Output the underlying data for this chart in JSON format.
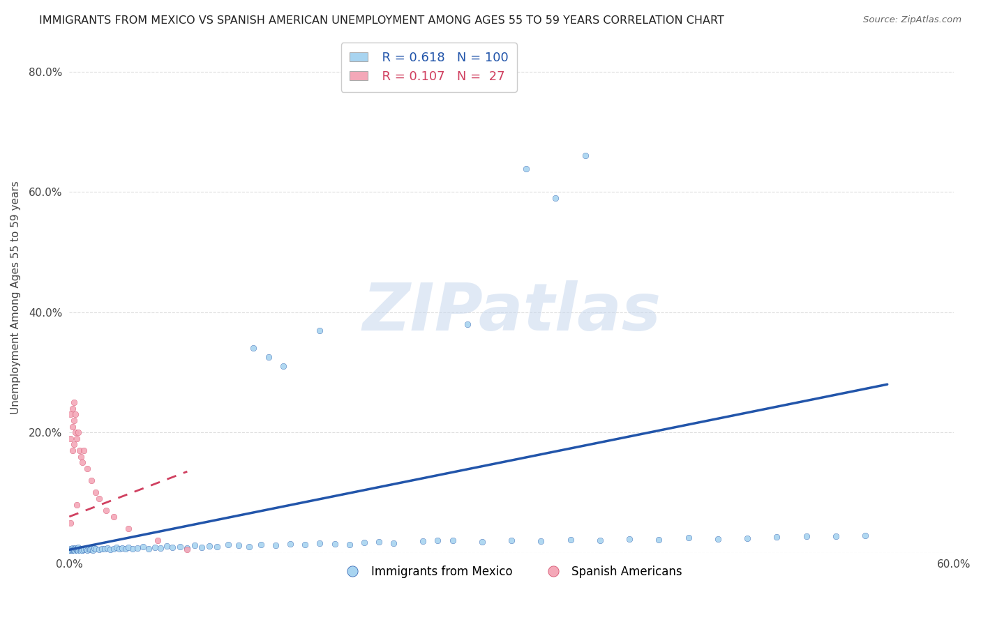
{
  "title": "IMMIGRANTS FROM MEXICO VS SPANISH AMERICAN UNEMPLOYMENT AMONG AGES 55 TO 59 YEARS CORRELATION CHART",
  "source": "Source: ZipAtlas.com",
  "ylabel": "Unemployment Among Ages 55 to 59 years",
  "xlim": [
    0.0,
    0.6
  ],
  "ylim": [
    0.0,
    0.85
  ],
  "xtick_vals": [
    0.0,
    0.1,
    0.2,
    0.3,
    0.4,
    0.5,
    0.6
  ],
  "xticklabels": [
    "0.0%",
    "",
    "",
    "",
    "",
    "",
    "60.0%"
  ],
  "ytick_vals": [
    0.0,
    0.2,
    0.4,
    0.6,
    0.8
  ],
  "yticklabels": [
    "",
    "20.0%",
    "40.0%",
    "60.0%",
    "80.0%"
  ],
  "blue_color": "#a8d4f0",
  "blue_line_color": "#2255aa",
  "pink_color": "#f4a8b8",
  "pink_line_color": "#d04060",
  "legend_R1": "R = 0.618",
  "legend_N1": "N = 100",
  "legend_R2": "R = 0.107",
  "legend_N2": "N =  27",
  "legend_label1": "Immigrants from Mexico",
  "legend_label2": "Spanish Americans",
  "watermark": "ZIPatlas",
  "background_color": "#ffffff",
  "grid_color": "#dddddd",
  "blue_scatter_x": [
    0.001,
    0.001,
    0.001,
    0.001,
    0.001,
    0.002,
    0.002,
    0.002,
    0.002,
    0.003,
    0.003,
    0.003,
    0.003,
    0.004,
    0.004,
    0.004,
    0.005,
    0.005,
    0.005,
    0.006,
    0.006,
    0.006,
    0.007,
    0.007,
    0.008,
    0.008,
    0.009,
    0.009,
    0.01,
    0.011,
    0.012,
    0.013,
    0.014,
    0.015,
    0.016,
    0.017,
    0.018,
    0.02,
    0.022,
    0.024,
    0.026,
    0.028,
    0.03,
    0.032,
    0.034,
    0.036,
    0.038,
    0.04,
    0.043,
    0.046,
    0.05,
    0.054,
    0.058,
    0.062,
    0.066,
    0.07,
    0.075,
    0.08,
    0.085,
    0.09,
    0.095,
    0.1,
    0.108,
    0.115,
    0.122,
    0.13,
    0.14,
    0.15,
    0.16,
    0.17,
    0.18,
    0.19,
    0.2,
    0.21,
    0.22,
    0.24,
    0.26,
    0.28,
    0.3,
    0.32,
    0.34,
    0.36,
    0.38,
    0.4,
    0.42,
    0.44,
    0.46,
    0.48,
    0.5,
    0.52,
    0.54,
    0.31,
    0.33,
    0.35,
    0.17,
    0.145,
    0.135,
    0.125,
    0.27,
    0.25
  ],
  "blue_scatter_y": [
    0.002,
    0.005,
    0.003,
    0.007,
    0.004,
    0.003,
    0.006,
    0.004,
    0.008,
    0.005,
    0.003,
    0.007,
    0.004,
    0.006,
    0.003,
    0.008,
    0.004,
    0.007,
    0.005,
    0.006,
    0.003,
    0.009,
    0.005,
    0.004,
    0.007,
    0.003,
    0.006,
    0.004,
    0.005,
    0.007,
    0.004,
    0.006,
    0.005,
    0.007,
    0.004,
    0.008,
    0.006,
    0.005,
    0.007,
    0.006,
    0.008,
    0.005,
    0.007,
    0.009,
    0.006,
    0.008,
    0.007,
    0.009,
    0.006,
    0.008,
    0.01,
    0.007,
    0.009,
    0.008,
    0.011,
    0.009,
    0.01,
    0.008,
    0.012,
    0.009,
    0.011,
    0.01,
    0.013,
    0.012,
    0.01,
    0.014,
    0.012,
    0.015,
    0.013,
    0.016,
    0.015,
    0.014,
    0.017,
    0.018,
    0.016,
    0.019,
    0.02,
    0.018,
    0.021,
    0.019,
    0.022,
    0.021,
    0.023,
    0.022,
    0.025,
    0.023,
    0.024,
    0.026,
    0.028,
    0.027,
    0.029,
    0.638,
    0.59,
    0.66,
    0.37,
    0.31,
    0.325,
    0.34,
    0.38,
    0.02
  ],
  "pink_scatter_x": [
    0.001,
    0.001,
    0.001,
    0.002,
    0.002,
    0.002,
    0.003,
    0.003,
    0.003,
    0.004,
    0.004,
    0.005,
    0.005,
    0.006,
    0.007,
    0.008,
    0.009,
    0.01,
    0.012,
    0.015,
    0.018,
    0.02,
    0.025,
    0.03,
    0.04,
    0.06,
    0.08
  ],
  "pink_scatter_y": [
    0.05,
    0.23,
    0.19,
    0.21,
    0.17,
    0.24,
    0.22,
    0.18,
    0.25,
    0.2,
    0.23,
    0.19,
    0.08,
    0.2,
    0.17,
    0.16,
    0.15,
    0.17,
    0.14,
    0.12,
    0.1,
    0.09,
    0.07,
    0.06,
    0.04,
    0.02,
    0.005
  ],
  "blue_line_x": [
    0.0,
    0.555
  ],
  "blue_line_y": [
    0.005,
    0.28
  ],
  "pink_line_x": [
    0.0,
    0.08
  ],
  "pink_line_y": [
    0.06,
    0.135
  ]
}
